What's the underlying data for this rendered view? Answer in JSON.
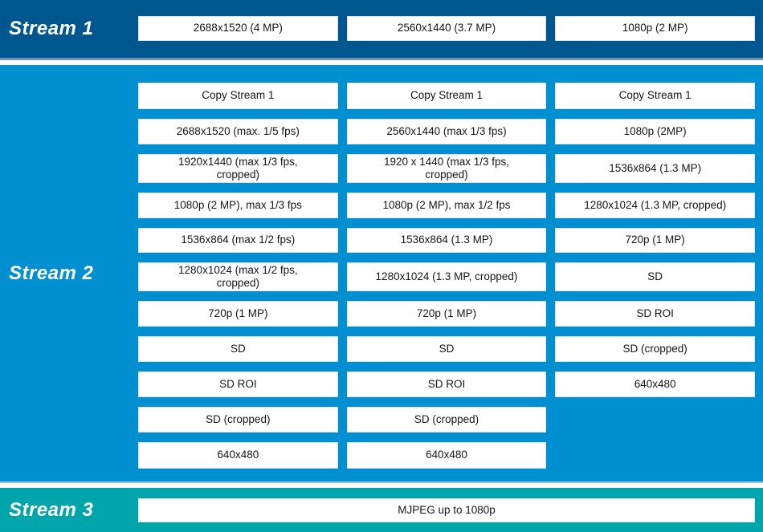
{
  "colors": {
    "stream1_band": "#00568E",
    "stream2_band": "#0090D2",
    "stream3_band": "#00A5AB",
    "box_background": "#FFFFFF",
    "box_text": "#151515",
    "label_text": "#FFFFFF"
  },
  "stream1": {
    "label": "Stream 1",
    "boxes": [
      "2688x1520 (4 MP)",
      "2560x1440 (3.7 MP)",
      "1080p (2 MP)"
    ]
  },
  "stream2": {
    "label": "Stream 2",
    "col1": [
      "Copy Stream 1",
      "2688x1520 (max. 1/5 fps)",
      "1920x1440 (max 1/3 fps,\ncropped)",
      "1080p (2 MP), max 1/3 fps",
      "1536x864 (max 1/2 fps)",
      "1280x1024 (max 1/2 fps,\ncropped)",
      "720p (1 MP)",
      "SD",
      "SD ROI",
      "SD (cropped)",
      "640x480"
    ],
    "col2": [
      "Copy Stream 1",
      "2560x1440 (max 1/3 fps)",
      "1920 x 1440 (max 1/3 fps,\ncropped)",
      "1080p (2 MP), max 1/2 fps",
      "1536x864 (1.3 MP)",
      "1280x1024 (1.3 MP, cropped)",
      "720p (1 MP)",
      "SD",
      "SD ROI",
      "SD (cropped)",
      "640x480"
    ],
    "col3": [
      "Copy Stream 1",
      "1080p (2MP)",
      "1536x864 (1.3 MP)",
      "1280x1024 (1.3 MP, cropped)",
      "720p (1 MP)",
      "SD",
      "SD ROI",
      "SD (cropped)",
      "640x480"
    ]
  },
  "stream3": {
    "label": "Stream 3",
    "boxes": [
      "MJPEG up to 1080p"
    ]
  }
}
